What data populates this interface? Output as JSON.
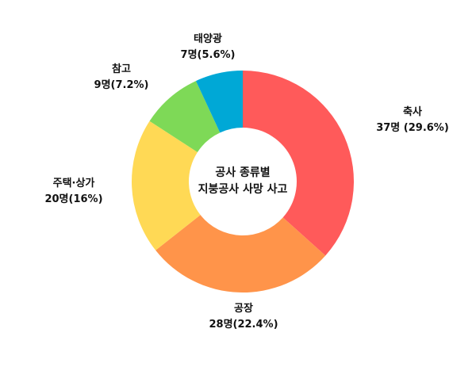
{
  "chart_data": {
    "type": "pie",
    "subtype": "donut",
    "title": "공사 종류별 지붕공사 사망 사고",
    "center_title": [
      "공사 종류별",
      "지붕공사 사망 사고"
    ],
    "categories": [
      "축사",
      "공장",
      "주택·상가",
      "참고",
      "태양광"
    ],
    "values": [
      37,
      28,
      20,
      9,
      7
    ],
    "percentages": [
      29.6,
      22.4,
      16,
      7.2,
      5.6
    ],
    "unit": "명",
    "colors": [
      "#FF5A5A",
      "#FF944A",
      "#FFD955",
      "#7ED957",
      "#00A8D6"
    ],
    "data_labels": [
      {
        "name": "축사",
        "value": "37명 (29.6%)"
      },
      {
        "name": "공장",
        "value": "28명(22.4%)"
      },
      {
        "name": "주택·상가",
        "value": "20명(16%)"
      },
      {
        "name": "참고",
        "value": "9명(7.2%)"
      },
      {
        "name": "태양광",
        "value": "7명(5.6%)"
      }
    ],
    "legend": "none",
    "start_angle": 0,
    "direction": "clockwise"
  }
}
